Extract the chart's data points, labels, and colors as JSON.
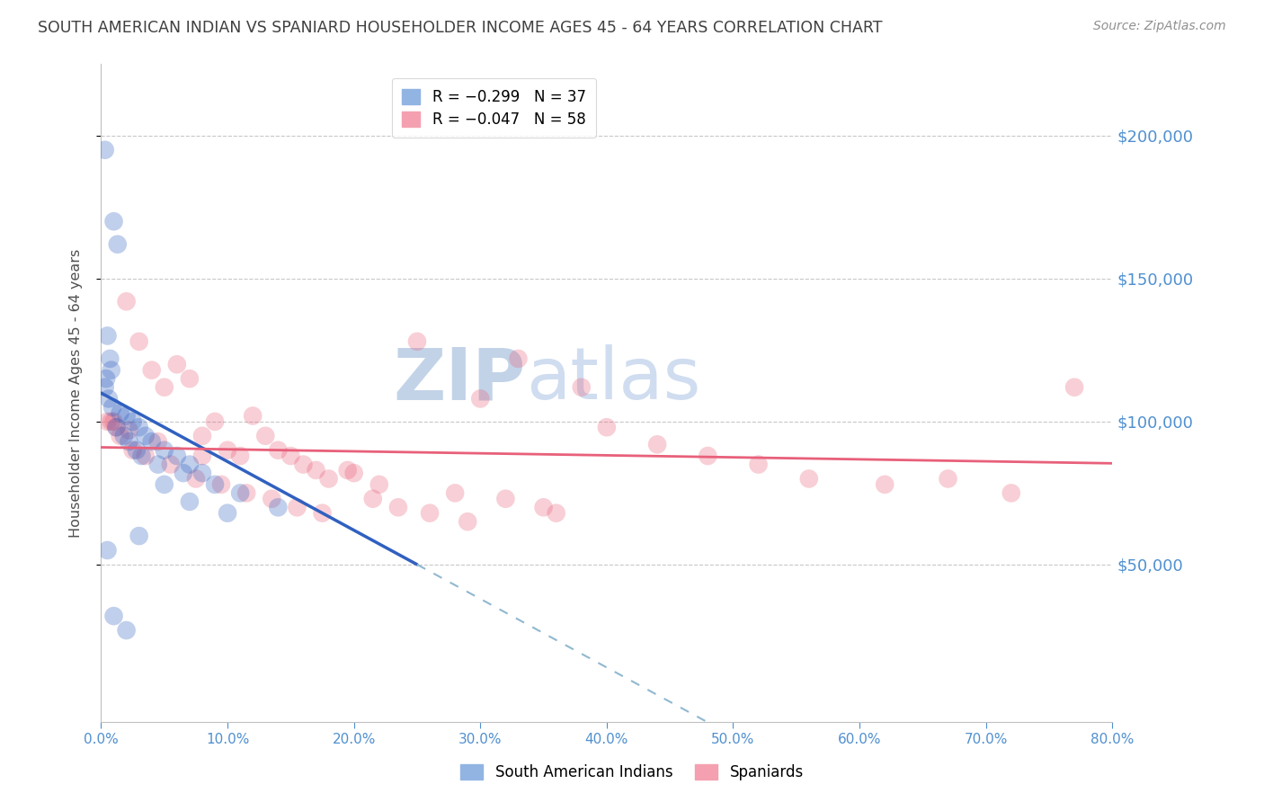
{
  "title": "SOUTH AMERICAN INDIAN VS SPANIARD HOUSEHOLDER INCOME AGES 45 - 64 YEARS CORRELATION CHART",
  "source": "Source: ZipAtlas.com",
  "ylabel": "Householder Income Ages 45 - 64 years",
  "xlabel_ticks": [
    "0.0%",
    "10.0%",
    "20.0%",
    "30.0%",
    "40.0%",
    "50.0%",
    "60.0%",
    "70.0%",
    "80.0%"
  ],
  "xlabel_vals": [
    0,
    10,
    20,
    30,
    40,
    50,
    60,
    70,
    80
  ],
  "ytick_labels": [
    "$50,000",
    "$100,000",
    "$150,000",
    "$200,000"
  ],
  "ytick_vals": [
    50000,
    100000,
    150000,
    200000
  ],
  "ylim": [
    -5000,
    225000
  ],
  "xlim": [
    0,
    80
  ],
  "legend_entries": [
    {
      "label": "R = −0.299   N = 37",
      "color": "#92b4e3"
    },
    {
      "label": "R = −0.047   N = 58",
      "color": "#f4a0b0"
    }
  ],
  "watermark_zip": "ZIP",
  "watermark_atlas": "atlas",
  "watermark_color_zip": "#b8cce4",
  "watermark_color_atlas": "#c8d8ee",
  "blue_scatter_x": [
    0.3,
    1.0,
    1.3,
    0.5,
    0.7,
    0.8,
    0.4,
    0.3,
    0.6,
    0.9,
    1.5,
    2.0,
    2.5,
    3.0,
    3.5,
    4.0,
    5.0,
    6.0,
    7.0,
    8.0,
    1.2,
    1.8,
    2.2,
    2.8,
    3.2,
    4.5,
    6.5,
    9.0,
    11.0,
    14.0,
    0.5,
    1.0,
    2.0,
    3.0,
    5.0,
    7.0,
    10.0
  ],
  "blue_scatter_y": [
    195000,
    170000,
    162000,
    130000,
    122000,
    118000,
    115000,
    112000,
    108000,
    105000,
    103000,
    102000,
    100000,
    98000,
    95000,
    93000,
    90000,
    88000,
    85000,
    82000,
    98000,
    95000,
    93000,
    90000,
    88000,
    85000,
    82000,
    78000,
    75000,
    70000,
    55000,
    32000,
    27000,
    60000,
    78000,
    72000,
    68000
  ],
  "pink_scatter_x": [
    0.5,
    0.8,
    1.2,
    2.0,
    3.0,
    4.0,
    5.0,
    6.0,
    7.0,
    8.0,
    9.0,
    10.0,
    11.0,
    12.0,
    13.0,
    14.0,
    15.0,
    16.0,
    17.0,
    18.0,
    20.0,
    22.0,
    25.0,
    28.0,
    30.0,
    33.0,
    35.0,
    38.0,
    40.0,
    44.0,
    48.0,
    52.0,
    56.0,
    62.0,
    67.0,
    72.0,
    77.0,
    1.5,
    2.5,
    3.5,
    5.5,
    7.5,
    9.5,
    11.5,
    13.5,
    15.5,
    17.5,
    19.5,
    21.5,
    23.5,
    26.0,
    29.0,
    32.0,
    36.0,
    1.0,
    2.2,
    4.5,
    8.0
  ],
  "pink_scatter_y": [
    100000,
    100000,
    98000,
    142000,
    128000,
    118000,
    112000,
    120000,
    115000,
    95000,
    100000,
    90000,
    88000,
    102000,
    95000,
    90000,
    88000,
    85000,
    83000,
    80000,
    82000,
    78000,
    128000,
    75000,
    108000,
    122000,
    70000,
    112000,
    98000,
    92000,
    88000,
    85000,
    80000,
    78000,
    80000,
    75000,
    112000,
    95000,
    90000,
    88000,
    85000,
    80000,
    78000,
    75000,
    73000,
    70000,
    68000,
    83000,
    73000,
    70000,
    68000,
    65000,
    73000,
    68000,
    100000,
    97000,
    93000,
    88000
  ],
  "blue_line_color": "#3060c0",
  "pink_line_color": "#e8607a",
  "dashed_line_color": "#90b8d0",
  "title_color": "#404040",
  "axis_label_color": "#505050",
  "tick_color": "#5090d0",
  "grid_color": "#c8c8c8",
  "background_color": "#ffffff",
  "blue_solid_end_x": 25.0,
  "blue_intercept": 110000,
  "blue_slope": -2400,
  "pink_intercept": 91000,
  "pink_slope": -70
}
